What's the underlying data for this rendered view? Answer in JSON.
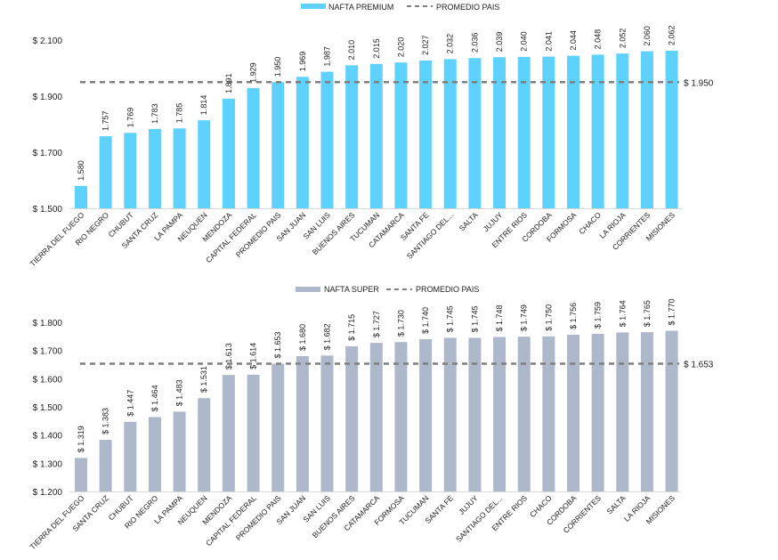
{
  "chart_data": [
    {
      "type": "bar",
      "title": "",
      "xlabel": "",
      "ylabel": "",
      "ylim": [
        1.5,
        2.1
      ],
      "yticks": [
        1.5,
        1.7,
        1.9,
        2.1
      ],
      "ytick_labels": [
        "$ 1.500",
        "$ 1.700",
        "$ 1.900",
        "$ 2.100"
      ],
      "grid": false,
      "legend_position": "top-center",
      "bar_color": "#5ed2fc",
      "categories": [
        "TIERRA DEL FUEGO",
        "RIO NEGRO",
        "CHUBUT",
        "SANTA CRUZ",
        "LA PAMPA",
        "NEUQUEN",
        "MENDOZA",
        "CAPITAL FEDERAL",
        "PROMEDIO PAIS",
        "SAN JUAN",
        "SAN LUIS",
        "BUENOS AIRES",
        "TUCUMAN",
        "CATAMARCA",
        "SANTA FE",
        "SANTIAGO DEL...",
        "SALTA",
        "JUJUY",
        "ENTRE RIOS",
        "CORDOBA",
        "FORMOSA",
        "CHACO",
        "LA RIOJA",
        "CORRIENTES",
        "MISIONES"
      ],
      "series": [
        {
          "name": "NAFTA PREMIUM",
          "values": [
            1.58,
            1.757,
            1.769,
            1.783,
            1.785,
            1.814,
            1.891,
            1.929,
            1.95,
            1.969,
            1.987,
            2.01,
            2.015,
            2.02,
            2.027,
            2.032,
            2.036,
            2.039,
            2.04,
            2.041,
            2.044,
            2.048,
            2.052,
            2.06,
            2.062
          ],
          "data_labels": [
            "1.580",
            "1.757",
            "1.769",
            "1.783",
            "1.785",
            "1.814",
            "1.891",
            "1.929",
            "1.950",
            "1.969",
            "1.987",
            "2.010",
            "2.015",
            "2.020",
            "2.027",
            "2.032",
            "2.036",
            "2.039",
            "2.040",
            "2.041",
            "2.044",
            "2.048",
            "2.052",
            "2.060",
            "2.062"
          ]
        }
      ],
      "reference_line": {
        "name": "PROMEDIO PAIS",
        "value": 1.95,
        "label": "$ 1.950",
        "color": "#7f7f7f",
        "style": "dashed"
      }
    },
    {
      "type": "bar",
      "title": "",
      "xlabel": "",
      "ylabel": "",
      "ylim": [
        1.2,
        1.8
      ],
      "yticks": [
        1.2,
        1.3,
        1.4,
        1.5,
        1.6,
        1.7,
        1.8
      ],
      "ytick_labels": [
        "$ 1.200",
        "$ 1.300",
        "$ 1.400",
        "$ 1.500",
        "$ 1.600",
        "$ 1.700",
        "$ 1.800"
      ],
      "grid": false,
      "legend_position": "top-center",
      "bar_color": "#adb9ca",
      "categories": [
        "TIERRA DEL FUEGO",
        "SANTA CRUZ",
        "CHUBUT",
        "RIO NEGRO",
        "LA PAMPA",
        "NEUQUEN",
        "MENDOZA",
        "CAPITAL FEDERAL",
        "PROMEDIO PAIS",
        "SAN JUAN",
        "SAN LUIS",
        "BUENOS AIRES",
        "CATAMARCA",
        "FORMOSA",
        "TUCUMAN",
        "SANTA FE",
        "JUJUY",
        "SANTIAGO DEL...",
        "ENTRE RIOS",
        "CHACO",
        "CORDOBA",
        "CORRIENTES",
        "SALTA",
        "LA RIOJA",
        "MISIONES"
      ],
      "series": [
        {
          "name": "NAFTA SUPER",
          "values": [
            1.319,
            1.383,
            1.447,
            1.464,
            1.483,
            1.531,
            1.613,
            1.614,
            1.653,
            1.68,
            1.682,
            1.715,
            1.727,
            1.73,
            1.74,
            1.745,
            1.745,
            1.748,
            1.749,
            1.75,
            1.756,
            1.759,
            1.764,
            1.765,
            1.77
          ],
          "data_labels": [
            "$ 1.319",
            "$ 1.383",
            "$ 1.447",
            "$ 1.464",
            "$ 1.483",
            "$ 1.531",
            "$ 1.613",
            "$ 1.614",
            "$ 1.653",
            "$ 1.680",
            "$ 1.682",
            "$ 1.715",
            "$ 1.727",
            "$ 1.730",
            "$ 1.740",
            "$ 1.745",
            "$ 1.745",
            "$ 1.748",
            "$ 1.749",
            "$ 1.750",
            "$ 1.756",
            "$ 1.759",
            "$ 1.764",
            "$ 1.765",
            "$ 1.770"
          ]
        }
      ],
      "reference_line": {
        "name": "PROMEDIO PAIS",
        "value": 1.653,
        "label": "$ 1.653",
        "color": "#7f7f7f",
        "style": "dashed"
      }
    }
  ]
}
